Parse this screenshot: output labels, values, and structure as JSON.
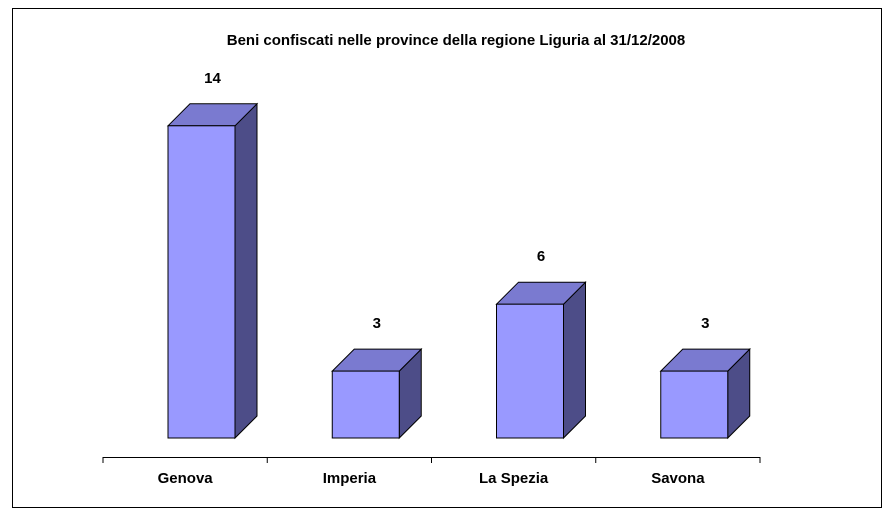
{
  "chart_data": {
    "type": "bar3d",
    "title": "Beni confiscati nelle province della regione Liguria al 31/12/2008",
    "categories": [
      "Genova",
      "Imperia",
      "La Spezia",
      "Savona"
    ],
    "values": [
      14,
      3,
      6,
      3
    ],
    "color": "#9999ff"
  }
}
